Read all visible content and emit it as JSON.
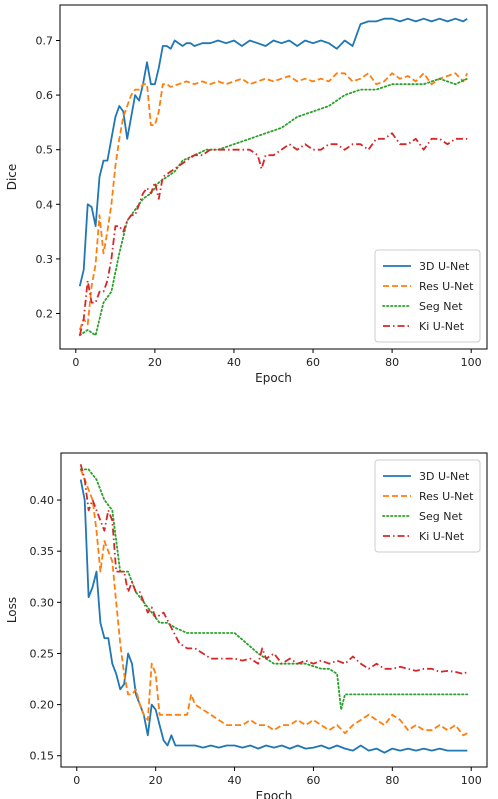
{
  "chart_data": [
    {
      "type": "line",
      "title": "",
      "xlabel": "Epoch",
      "ylabel": "Dice",
      "xlim": [
        -4,
        104
      ],
      "ylim": [
        0.135,
        0.765
      ],
      "xticks": [
        0,
        20,
        40,
        60,
        80,
        100
      ],
      "xtick_labels": [
        "0",
        "20",
        "40",
        "60",
        "80",
        "100"
      ],
      "yticks": [
        0.2,
        0.3,
        0.4,
        0.5,
        0.6,
        0.7
      ],
      "ytick_labels": [
        "0.2",
        "0.3",
        "0.4",
        "0.5",
        "0.6",
        "0.7"
      ],
      "grid": false,
      "legend_position": "lower-right",
      "series": [
        {
          "name": "3D U-Net",
          "color": "#1f77b4",
          "style": "solid",
          "x": [
            1,
            2,
            3,
            4,
            5,
            6,
            7,
            8,
            9,
            10,
            11,
            12,
            13,
            14,
            15,
            16,
            17,
            18,
            19,
            20,
            21,
            22,
            23,
            24,
            25,
            26,
            27,
            28,
            29,
            30,
            32,
            34,
            36,
            38,
            40,
            42,
            44,
            46,
            48,
            50,
            52,
            54,
            56,
            58,
            60,
            62,
            64,
            66,
            68,
            70,
            72,
            74,
            76,
            78,
            80,
            82,
            84,
            86,
            88,
            90,
            92,
            94,
            96,
            98,
            99
          ],
          "y": [
            0.25,
            0.28,
            0.4,
            0.395,
            0.36,
            0.45,
            0.48,
            0.48,
            0.52,
            0.56,
            0.58,
            0.57,
            0.52,
            0.56,
            0.6,
            0.59,
            0.62,
            0.66,
            0.62,
            0.62,
            0.65,
            0.69,
            0.69,
            0.685,
            0.7,
            0.695,
            0.69,
            0.695,
            0.695,
            0.69,
            0.695,
            0.695,
            0.7,
            0.695,
            0.7,
            0.69,
            0.7,
            0.695,
            0.69,
            0.7,
            0.695,
            0.7,
            0.69,
            0.7,
            0.695,
            0.7,
            0.695,
            0.685,
            0.7,
            0.69,
            0.73,
            0.735,
            0.735,
            0.74,
            0.74,
            0.735,
            0.74,
            0.735,
            0.74,
            0.735,
            0.74,
            0.735,
            0.74,
            0.735,
            0.74
          ]
        },
        {
          "name": "Res U-Net",
          "color": "#ff7f0e",
          "style": "dashed",
          "x": [
            1,
            2,
            3,
            4,
            5,
            6,
            7,
            8,
            9,
            10,
            11,
            12,
            13,
            14,
            15,
            16,
            17,
            18,
            19,
            20,
            21,
            22,
            23,
            24,
            26,
            28,
            30,
            32,
            34,
            36,
            38,
            40,
            42,
            44,
            46,
            48,
            50,
            52,
            54,
            56,
            58,
            60,
            62,
            64,
            66,
            68,
            70,
            72,
            74,
            76,
            78,
            80,
            82,
            84,
            86,
            88,
            90,
            92,
            94,
            96,
            98,
            99
          ],
          "y": [
            0.17,
            0.19,
            0.18,
            0.25,
            0.29,
            0.38,
            0.31,
            0.35,
            0.4,
            0.47,
            0.52,
            0.56,
            0.58,
            0.6,
            0.61,
            0.61,
            0.62,
            0.62,
            0.545,
            0.545,
            0.57,
            0.62,
            0.62,
            0.615,
            0.62,
            0.625,
            0.62,
            0.625,
            0.62,
            0.625,
            0.62,
            0.625,
            0.63,
            0.62,
            0.625,
            0.63,
            0.625,
            0.63,
            0.635,
            0.625,
            0.63,
            0.625,
            0.63,
            0.625,
            0.64,
            0.64,
            0.625,
            0.63,
            0.64,
            0.62,
            0.625,
            0.64,
            0.63,
            0.635,
            0.625,
            0.64,
            0.62,
            0.63,
            0.635,
            0.64,
            0.625,
            0.64
          ]
        },
        {
          "name": "Seg Net",
          "color": "#2ca02c",
          "style": "dotted",
          "x": [
            1,
            3,
            5,
            7,
            9,
            11,
            13,
            15,
            17,
            19,
            21,
            23,
            25,
            27,
            30,
            33,
            36,
            40,
            44,
            48,
            52,
            56,
            60,
            64,
            68,
            72,
            76,
            80,
            84,
            88,
            92,
            96,
            99
          ],
          "y": [
            0.16,
            0.17,
            0.16,
            0.22,
            0.24,
            0.31,
            0.37,
            0.39,
            0.41,
            0.42,
            0.44,
            0.45,
            0.46,
            0.48,
            0.49,
            0.5,
            0.5,
            0.51,
            0.52,
            0.53,
            0.54,
            0.56,
            0.57,
            0.58,
            0.6,
            0.61,
            0.61,
            0.62,
            0.62,
            0.62,
            0.63,
            0.62,
            0.63
          ]
        },
        {
          "name": "Ki U-Net",
          "color": "#d62728",
          "style": "dashdot",
          "x": [
            1,
            2,
            3,
            4,
            5,
            6,
            7,
            8,
            9,
            10,
            11,
            12,
            13,
            14,
            15,
            16,
            17,
            18,
            19,
            20,
            21,
            22,
            24,
            26,
            28,
            30,
            32,
            34,
            36,
            38,
            40,
            42,
            44,
            46,
            47,
            48,
            50,
            52,
            54,
            56,
            58,
            60,
            62,
            64,
            66,
            68,
            70,
            72,
            74,
            76,
            78,
            80,
            82,
            84,
            86,
            88,
            90,
            92,
            94,
            96,
            98,
            99
          ],
          "y": [
            0.16,
            0.19,
            0.26,
            0.22,
            0.22,
            0.24,
            0.24,
            0.26,
            0.3,
            0.36,
            0.36,
            0.35,
            0.37,
            0.38,
            0.38,
            0.4,
            0.42,
            0.43,
            0.42,
            0.44,
            0.41,
            0.45,
            0.46,
            0.47,
            0.48,
            0.49,
            0.49,
            0.5,
            0.5,
            0.5,
            0.5,
            0.5,
            0.5,
            0.49,
            0.465,
            0.49,
            0.49,
            0.5,
            0.51,
            0.5,
            0.51,
            0.5,
            0.5,
            0.51,
            0.51,
            0.5,
            0.51,
            0.51,
            0.5,
            0.52,
            0.52,
            0.53,
            0.51,
            0.51,
            0.52,
            0.5,
            0.52,
            0.52,
            0.51,
            0.52,
            0.52,
            0.52
          ]
        }
      ]
    },
    {
      "type": "line",
      "title": "",
      "xlabel": "Epoch",
      "ylabel": "Loss",
      "xlim": [
        -4,
        104
      ],
      "ylim": [
        0.139,
        0.446
      ],
      "xticks": [
        0,
        20,
        40,
        60,
        80,
        100
      ],
      "xtick_labels": [
        "0",
        "20",
        "40",
        "60",
        "80",
        "100"
      ],
      "yticks": [
        0.15,
        0.2,
        0.25,
        0.3,
        0.35,
        0.4
      ],
      "ytick_labels": [
        "0.15",
        "0.20",
        "0.25",
        "0.30",
        "0.35",
        "0.40"
      ],
      "grid": false,
      "legend_position": "upper-right",
      "series": [
        {
          "name": "3D U-Net",
          "color": "#1f77b4",
          "style": "solid",
          "x": [
            1,
            2,
            3,
            4,
            5,
            6,
            7,
            8,
            9,
            10,
            11,
            12,
            13,
            14,
            15,
            16,
            17,
            18,
            19,
            20,
            21,
            22,
            23,
            24,
            25,
            26,
            28,
            30,
            32,
            34,
            36,
            38,
            40,
            42,
            44,
            46,
            48,
            50,
            52,
            54,
            56,
            58,
            60,
            62,
            64,
            66,
            68,
            70,
            72,
            74,
            76,
            78,
            80,
            82,
            84,
            86,
            88,
            90,
            92,
            94,
            96,
            98,
            99
          ],
          "y": [
            0.42,
            0.4,
            0.305,
            0.315,
            0.33,
            0.28,
            0.265,
            0.265,
            0.24,
            0.23,
            0.215,
            0.22,
            0.25,
            0.24,
            0.21,
            0.2,
            0.19,
            0.17,
            0.2,
            0.195,
            0.18,
            0.165,
            0.16,
            0.17,
            0.16,
            0.16,
            0.16,
            0.16,
            0.158,
            0.16,
            0.158,
            0.16,
            0.16,
            0.158,
            0.16,
            0.157,
            0.16,
            0.158,
            0.16,
            0.157,
            0.16,
            0.157,
            0.158,
            0.16,
            0.157,
            0.16,
            0.157,
            0.155,
            0.16,
            0.155,
            0.157,
            0.153,
            0.157,
            0.155,
            0.157,
            0.155,
            0.157,
            0.155,
            0.157,
            0.155,
            0.155,
            0.155,
            0.155
          ]
        },
        {
          "name": "Res U-Net",
          "color": "#ff7f0e",
          "style": "dashed",
          "x": [
            1,
            2,
            3,
            4,
            5,
            6,
            7,
            8,
            9,
            10,
            11,
            12,
            13,
            14,
            15,
            16,
            17,
            18,
            19,
            20,
            21,
            22,
            24,
            26,
            28,
            29,
            30,
            32,
            34,
            36,
            38,
            40,
            42,
            44,
            46,
            48,
            50,
            52,
            54,
            56,
            58,
            60,
            62,
            64,
            66,
            68,
            70,
            72,
            74,
            76,
            78,
            80,
            82,
            84,
            86,
            88,
            90,
            92,
            94,
            96,
            98,
            99
          ],
          "y": [
            0.43,
            0.42,
            0.41,
            0.4,
            0.37,
            0.33,
            0.36,
            0.35,
            0.34,
            0.3,
            0.26,
            0.23,
            0.21,
            0.21,
            0.215,
            0.2,
            0.19,
            0.185,
            0.24,
            0.23,
            0.19,
            0.19,
            0.19,
            0.19,
            0.19,
            0.21,
            0.2,
            0.195,
            0.19,
            0.185,
            0.18,
            0.18,
            0.18,
            0.185,
            0.18,
            0.18,
            0.175,
            0.18,
            0.18,
            0.185,
            0.18,
            0.185,
            0.18,
            0.175,
            0.18,
            0.172,
            0.18,
            0.185,
            0.19,
            0.185,
            0.18,
            0.19,
            0.185,
            0.175,
            0.18,
            0.175,
            0.175,
            0.18,
            0.175,
            0.18,
            0.17,
            0.172
          ]
        },
        {
          "name": "Seg Net",
          "color": "#2ca02c",
          "style": "dotted",
          "x": [
            1,
            3,
            5,
            7,
            9,
            11,
            13,
            15,
            17,
            19,
            21,
            23,
            25,
            28,
            32,
            36,
            40,
            43,
            46,
            50,
            54,
            58,
            62,
            64,
            66,
            67,
            68,
            70,
            72,
            76,
            80,
            84,
            88,
            92,
            96,
            99
          ],
          "y": [
            0.43,
            0.43,
            0.42,
            0.4,
            0.39,
            0.33,
            0.33,
            0.31,
            0.3,
            0.29,
            0.28,
            0.28,
            0.275,
            0.27,
            0.27,
            0.27,
            0.27,
            0.26,
            0.25,
            0.24,
            0.24,
            0.24,
            0.235,
            0.235,
            0.23,
            0.195,
            0.21,
            0.21,
            0.21,
            0.21,
            0.21,
            0.21,
            0.21,
            0.21,
            0.21,
            0.21
          ]
        },
        {
          "name": "Ki U-Net",
          "color": "#d62728",
          "style": "dashdot",
          "x": [
            1,
            2,
            3,
            4,
            5,
            6,
            7,
            8,
            9,
            10,
            11,
            12,
            13,
            14,
            15,
            16,
            17,
            18,
            19,
            20,
            22,
            24,
            26,
            28,
            30,
            32,
            34,
            36,
            38,
            40,
            42,
            44,
            46,
            47,
            48,
            50,
            52,
            54,
            56,
            58,
            60,
            62,
            64,
            66,
            68,
            70,
            72,
            74,
            76,
            78,
            80,
            82,
            84,
            86,
            88,
            90,
            92,
            94,
            96,
            98,
            99
          ],
          "y": [
            0.435,
            0.42,
            0.39,
            0.4,
            0.39,
            0.38,
            0.37,
            0.39,
            0.38,
            0.33,
            0.33,
            0.33,
            0.31,
            0.32,
            0.31,
            0.31,
            0.3,
            0.29,
            0.295,
            0.285,
            0.29,
            0.275,
            0.26,
            0.255,
            0.255,
            0.25,
            0.245,
            0.245,
            0.245,
            0.245,
            0.243,
            0.245,
            0.24,
            0.255,
            0.245,
            0.25,
            0.24,
            0.245,
            0.24,
            0.243,
            0.24,
            0.243,
            0.24,
            0.243,
            0.24,
            0.247,
            0.24,
            0.235,
            0.24,
            0.235,
            0.235,
            0.237,
            0.235,
            0.233,
            0.235,
            0.235,
            0.232,
            0.233,
            0.232,
            0.23,
            0.232
          ]
        }
      ]
    }
  ]
}
